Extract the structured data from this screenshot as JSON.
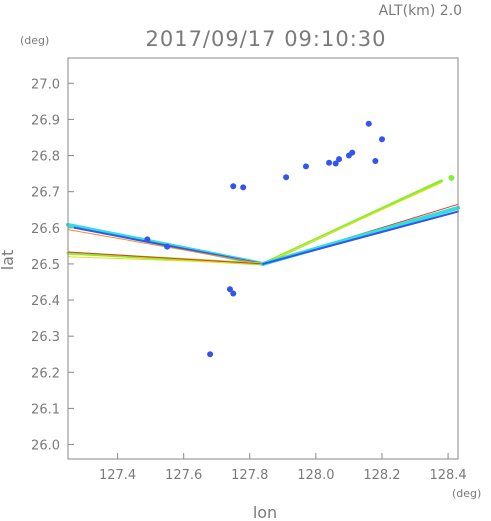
{
  "chart_data": {
    "type": "scatter",
    "title": "2017/09/17 09:10:30",
    "subtitle": "ALT(km) 2.0",
    "xlabel": "lon",
    "ylabel": "lat",
    "x_unit": "(deg)",
    "y_unit": "(deg)",
    "xlim": [
      127.25,
      128.43
    ],
    "ylim": [
      25.96,
      27.07
    ],
    "x_ticks": [
      127.4,
      127.6,
      127.8,
      128.0,
      128.2,
      128.4
    ],
    "x_tick_labels": [
      "127.4",
      "127.6",
      "127.8",
      "128.0",
      "128.2",
      "128.4"
    ],
    "y_ticks": [
      26.0,
      26.1,
      26.2,
      26.3,
      26.4,
      26.5,
      26.6,
      26.7,
      26.8,
      26.9,
      27.0
    ],
    "y_tick_labels": [
      "26.0",
      "26.1",
      "26.2",
      "26.3",
      "26.4",
      "26.5",
      "26.6",
      "26.7",
      "26.8",
      "26.9",
      "27.0"
    ],
    "grid": false,
    "colors": {
      "blue": "#3355ee",
      "cyan": "#33dddd",
      "green": "#88ee33",
      "yellow": "#eedd22",
      "orange": "#ff8822",
      "red": "#ee3322"
    },
    "radar_origin": [
      127.84,
      26.5
    ],
    "beam_streaks": [
      {
        "from": [
          127.25,
          26.608
        ],
        "to": [
          127.84,
          26.5
        ],
        "color": "cyan",
        "width": 4
      },
      {
        "from": [
          127.27,
          26.6
        ],
        "to": [
          127.84,
          26.5
        ],
        "color": "blue",
        "width": 2
      },
      {
        "from": [
          127.25,
          26.595
        ],
        "to": [
          127.84,
          26.5
        ],
        "color": "orange",
        "width": 1
      },
      {
        "from": [
          127.25,
          26.53
        ],
        "to": [
          127.84,
          26.5
        ],
        "color": "green",
        "width": 3
      },
      {
        "from": [
          127.25,
          26.52
        ],
        "to": [
          127.84,
          26.5
        ],
        "color": "yellow",
        "width": 1
      },
      {
        "from": [
          127.25,
          26.533
        ],
        "to": [
          127.84,
          26.5
        ],
        "color": "red",
        "width": 1
      },
      {
        "from": [
          127.84,
          26.5
        ],
        "to": [
          128.38,
          26.73
        ],
        "color": "green",
        "width": 3
      },
      {
        "from": [
          127.84,
          26.5
        ],
        "to": [
          128.38,
          26.725
        ],
        "color": "yellow",
        "width": 1
      },
      {
        "from": [
          127.84,
          26.5
        ],
        "to": [
          128.43,
          26.665
        ],
        "color": "red",
        "width": 1
      },
      {
        "from": [
          127.84,
          26.5
        ],
        "to": [
          128.43,
          26.655
        ],
        "color": "cyan",
        "width": 4
      },
      {
        "from": [
          127.84,
          26.5
        ],
        "to": [
          128.43,
          26.645
        ],
        "color": "blue",
        "width": 2
      }
    ],
    "echo_points": [
      {
        "x": 128.16,
        "y": 26.888,
        "color": "blue"
      },
      {
        "x": 128.1,
        "y": 26.8,
        "color": "blue"
      },
      {
        "x": 128.11,
        "y": 26.808,
        "color": "blue"
      },
      {
        "x": 128.07,
        "y": 26.79,
        "color": "blue"
      },
      {
        "x": 128.18,
        "y": 26.785,
        "color": "blue"
      },
      {
        "x": 128.06,
        "y": 26.778,
        "color": "blue"
      },
      {
        "x": 127.91,
        "y": 26.74,
        "color": "blue"
      },
      {
        "x": 127.75,
        "y": 26.715,
        "color": "blue"
      },
      {
        "x": 127.78,
        "y": 26.712,
        "color": "blue"
      },
      {
        "x": 128.04,
        "y": 26.78,
        "color": "blue"
      },
      {
        "x": 128.2,
        "y": 26.845,
        "color": "blue"
      },
      {
        "x": 127.97,
        "y": 26.77,
        "color": "blue"
      },
      {
        "x": 127.74,
        "y": 26.43,
        "color": "blue"
      },
      {
        "x": 127.75,
        "y": 26.418,
        "color": "blue"
      },
      {
        "x": 127.68,
        "y": 26.25,
        "color": "blue"
      },
      {
        "x": 127.49,
        "y": 26.568,
        "color": "blue"
      },
      {
        "x": 127.55,
        "y": 26.548,
        "color": "blue"
      },
      {
        "x": 128.41,
        "y": 26.738,
        "color": "green"
      }
    ]
  }
}
